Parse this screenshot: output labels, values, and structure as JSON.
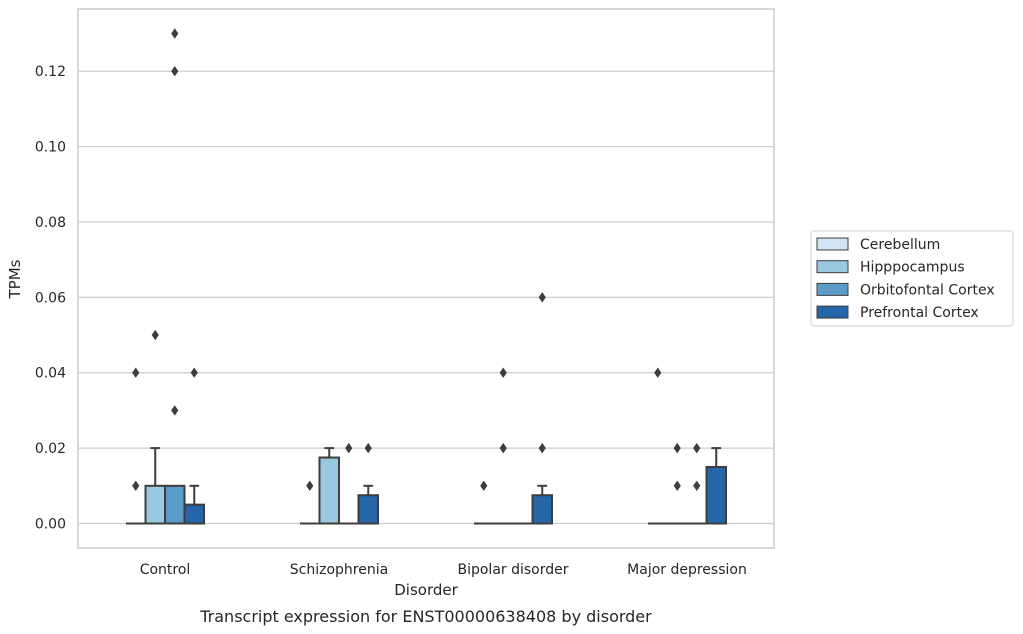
{
  "chart_data": {
    "type": "box",
    "xlabel": "Disorder",
    "ylabel": "TPMs",
    "caption": "Transcript expression for ENST00000638408 by disorder",
    "categories": [
      "Control",
      "Schizophrenia",
      "Bipolar disorder",
      "Major depression"
    ],
    "ylim": [
      -0.0065,
      0.1365
    ],
    "yticks": [
      0.0,
      0.02,
      0.04,
      0.06,
      0.08,
      0.1,
      0.12
    ],
    "ytick_labels": [
      "0.00",
      "0.02",
      "0.04",
      "0.06",
      "0.08",
      "0.10",
      "0.12"
    ],
    "grid": "horizontal",
    "legend_position": "right",
    "series": [
      {
        "name": "Cerebellum",
        "color": "#d2e3f3",
        "boxes": [
          {
            "q1": 0,
            "median": 0,
            "q3": 0,
            "whisker_low": 0,
            "whisker_high": 0,
            "outliers": [
              0.01,
              0.04
            ]
          },
          {
            "q1": 0,
            "median": 0,
            "q3": 0,
            "whisker_low": 0,
            "whisker_high": 0,
            "outliers": [
              0.01
            ]
          },
          {
            "q1": 0,
            "median": 0,
            "q3": 0,
            "whisker_low": 0,
            "whisker_high": 0,
            "outliers": [
              0.01
            ]
          },
          {
            "q1": 0,
            "median": 0,
            "q3": 0,
            "whisker_low": 0,
            "whisker_high": 0,
            "outliers": [
              0.04
            ]
          }
        ]
      },
      {
        "name": "Hipppocampus",
        "color": "#9ac8e0",
        "boxes": [
          {
            "q1": 0,
            "median": 0,
            "q3": 0.01,
            "whisker_low": 0,
            "whisker_high": 0.02,
            "outliers": [
              0.05
            ]
          },
          {
            "q1": 0,
            "median": 0,
            "q3": 0.0175,
            "whisker_low": 0,
            "whisker_high": 0.02,
            "outliers": []
          },
          {
            "q1": 0,
            "median": 0,
            "q3": 0,
            "whisker_low": 0,
            "whisker_high": 0,
            "outliers": [
              0.02,
              0.04
            ]
          },
          {
            "q1": 0,
            "median": 0,
            "q3": 0,
            "whisker_low": 0,
            "whisker_high": 0,
            "outliers": [
              0.01,
              0.02
            ]
          }
        ]
      },
      {
        "name": "Orbitofontal Cortex",
        "color": "#5a9bc9",
        "boxes": [
          {
            "q1": 0,
            "median": 0,
            "q3": 0.01,
            "whisker_low": 0,
            "whisker_high": 0.01,
            "outliers": [
              0.03,
              0.12,
              0.13
            ]
          },
          {
            "q1": 0,
            "median": 0,
            "q3": 0,
            "whisker_low": 0,
            "whisker_high": 0,
            "outliers": [
              0.02
            ]
          },
          {
            "q1": 0,
            "median": 0,
            "q3": 0,
            "whisker_low": 0,
            "whisker_high": 0,
            "outliers": []
          },
          {
            "q1": 0,
            "median": 0,
            "q3": 0,
            "whisker_low": 0,
            "whisker_high": 0,
            "outliers": [
              0.01,
              0.02
            ]
          }
        ]
      },
      {
        "name": "Prefrontal Cortex",
        "color": "#2666a8",
        "boxes": [
          {
            "q1": 0,
            "median": 0,
            "q3": 0.005,
            "whisker_low": 0,
            "whisker_high": 0.01,
            "outliers": [
              0.04
            ]
          },
          {
            "q1": 0,
            "median": 0,
            "q3": 0.0075,
            "whisker_low": 0,
            "whisker_high": 0.01,
            "outliers": [
              0.02
            ]
          },
          {
            "q1": 0,
            "median": 0,
            "q3": 0.0075,
            "whisker_low": 0,
            "whisker_high": 0.01,
            "outliers": [
              0.02,
              0.06
            ]
          },
          {
            "q1": 0,
            "median": 0,
            "q3": 0.015,
            "whisker_low": 0,
            "whisker_high": 0.02,
            "outliers": []
          }
        ]
      }
    ]
  },
  "colors": {
    "grid": "#cccccc",
    "frame": "#cccccc",
    "line": "#3d3d3d",
    "text": "#262626"
  }
}
